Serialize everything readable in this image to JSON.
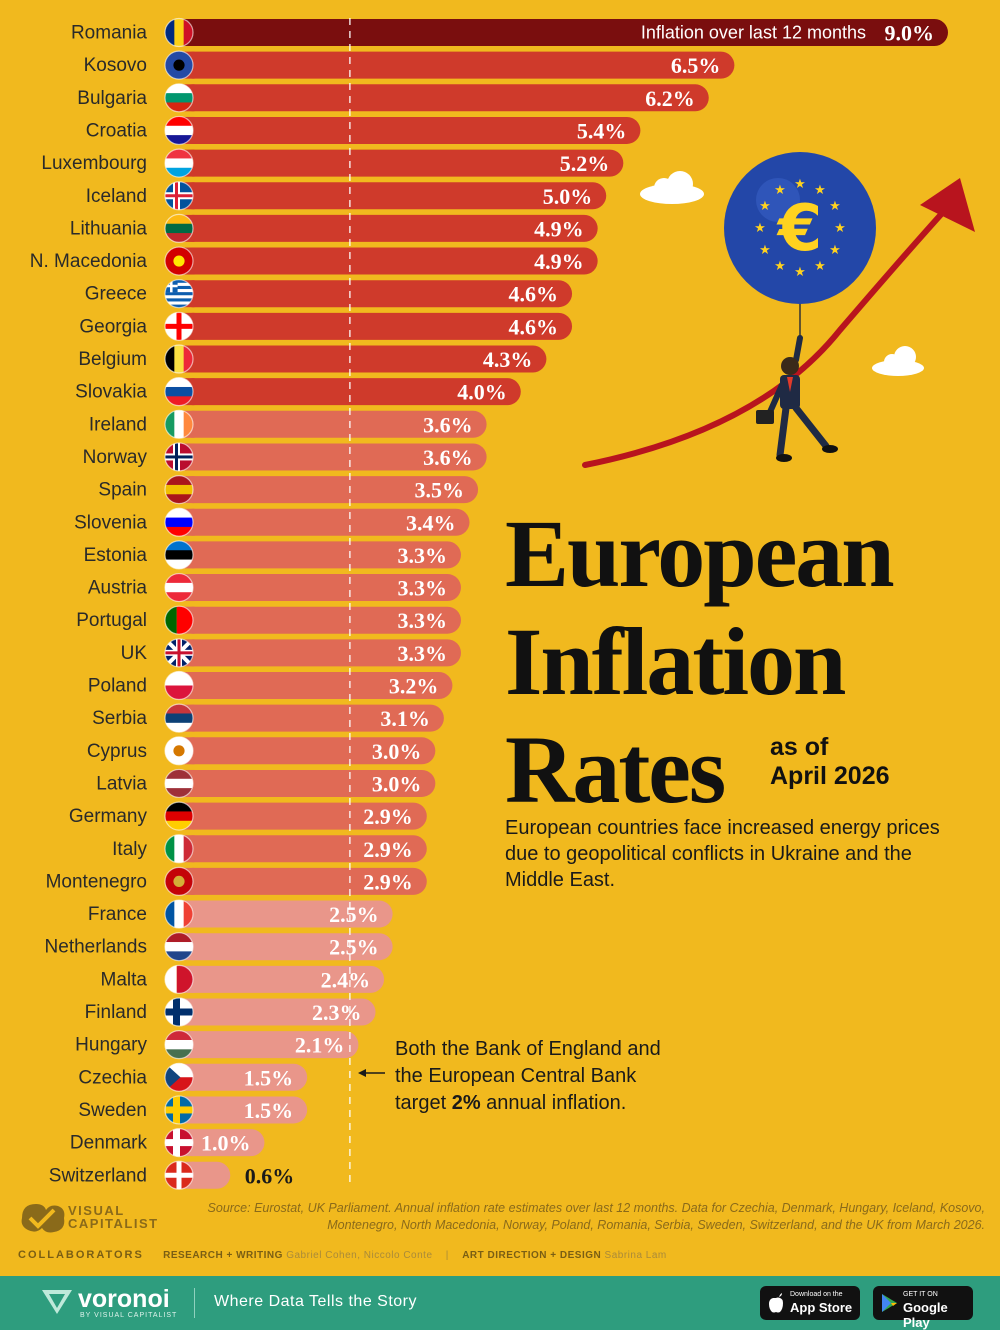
{
  "chart_data": {
    "type": "bar",
    "orientation": "horizontal",
    "categories": [
      "Romania",
      "Kosovo",
      "Bulgaria",
      "Croatia",
      "Luxembourg",
      "Iceland",
      "Lithuania",
      "N. Macedonia",
      "Greece",
      "Georgia",
      "Belgium",
      "Slovakia",
      "Ireland",
      "Norway",
      "Spain",
      "Slovenia",
      "Estonia",
      "Austria",
      "Portugal",
      "UK",
      "Poland",
      "Serbia",
      "Cyprus",
      "Latvia",
      "Germany",
      "Italy",
      "Montenegro",
      "France",
      "Netherlands",
      "Malta",
      "Finland",
      "Hungary",
      "Czechia",
      "Sweden",
      "Denmark",
      "Switzerland"
    ],
    "values": [
      9.0,
      6.5,
      6.2,
      5.4,
      5.2,
      5.0,
      4.9,
      4.9,
      4.6,
      4.6,
      4.3,
      4.0,
      3.6,
      3.6,
      3.5,
      3.4,
      3.3,
      3.3,
      3.3,
      3.3,
      3.2,
      3.1,
      3.0,
      3.0,
      2.9,
      2.9,
      2.9,
      2.5,
      2.5,
      2.4,
      2.3,
      2.1,
      1.5,
      1.5,
      1.0,
      0.6
    ],
    "value_labels": [
      "9.0%",
      "6.5%",
      "6.2%",
      "5.4%",
      "5.2%",
      "5.0%",
      "4.9%",
      "4.9%",
      "4.6%",
      "4.6%",
      "4.3%",
      "4.0%",
      "3.6%",
      "3.6%",
      "3.5%",
      "3.4%",
      "3.3%",
      "3.3%",
      "3.3%",
      "3.3%",
      "3.2%",
      "3.1%",
      "3.0%",
      "3.0%",
      "2.9%",
      "2.9%",
      "2.9%",
      "2.5%",
      "2.5%",
      "2.4%",
      "2.3%",
      "2.1%",
      "1.5%",
      "1.5%",
      "1.0%",
      "0.6%"
    ],
    "top_bar_label": "Inflation over last 12 months",
    "reference_line": 2.0,
    "xlim": [
      0,
      9.0
    ],
    "grid": false,
    "flags": {
      "Romania": [
        "v",
        "#002B7F",
        "#FCD116",
        "#CE1126"
      ],
      "Kosovo": [
        "s",
        "#244AA5"
      ],
      "Bulgaria": [
        "h",
        "#FFFFFF",
        "#00966E",
        "#D62612"
      ],
      "Croatia": [
        "h",
        "#FF0000",
        "#FFFFFF",
        "#171796"
      ],
      "Luxembourg": [
        "h",
        "#EF3340",
        "#FFFFFF",
        "#00A3E0"
      ],
      "Iceland": [
        "n",
        "#02529C",
        "#FFFFFF",
        "#DC1E35"
      ],
      "Lithuania": [
        "h",
        "#FDB913",
        "#006A44",
        "#C1272D"
      ],
      "N. Macedonia": [
        "s",
        "#D20000",
        "#FFE600"
      ],
      "Greece": [
        "g",
        "#0D5EAF",
        "#FFFFFF"
      ],
      "Georgia": [
        "c",
        "#FFFFFF",
        "#FF0000"
      ],
      "Belgium": [
        "v",
        "#000000",
        "#FAE042",
        "#ED2939"
      ],
      "Slovakia": [
        "h",
        "#FFFFFF",
        "#0B4EA2",
        "#EE1C25"
      ],
      "Ireland": [
        "v",
        "#169B62",
        "#FFFFFF",
        "#FF883E"
      ],
      "Norway": [
        "n",
        "#BA0C2F",
        "#FFFFFF",
        "#00205B"
      ],
      "Spain": [
        "h",
        "#AA151B",
        "#F1BF00",
        "#AA151B"
      ],
      "Slovenia": [
        "h",
        "#FFFFFF",
        "#0000FF",
        "#FF0000"
      ],
      "Estonia": [
        "h",
        "#0072CE",
        "#000000",
        "#FFFFFF"
      ],
      "Austria": [
        "h",
        "#ED2939",
        "#FFFFFF",
        "#ED2939"
      ],
      "Portugal": [
        "v2",
        "#006600",
        "#FF0000"
      ],
      "UK": [
        "u",
        "#012169",
        "#FFFFFF",
        "#C8102E"
      ],
      "Poland": [
        "h2",
        "#FFFFFF",
        "#DC143C"
      ],
      "Serbia": [
        "h",
        "#C6363C",
        "#0C4076",
        "#FFFFFF"
      ],
      "Cyprus": [
        "s",
        "#FFFFFF",
        "#D57800"
      ],
      "Latvia": [
        "h",
        "#9E3039",
        "#FFFFFF",
        "#9E3039"
      ],
      "Germany": [
        "h",
        "#000000",
        "#DD0000",
        "#FFCE00"
      ],
      "Italy": [
        "v",
        "#009246",
        "#FFFFFF",
        "#CE2B37"
      ],
      "Montenegro": [
        "s",
        "#C40308",
        "#D4AF37"
      ],
      "France": [
        "v",
        "#0055A4",
        "#FFFFFF",
        "#EF4135"
      ],
      "Netherlands": [
        "h",
        "#AE1C28",
        "#FFFFFF",
        "#21468B"
      ],
      "Malta": [
        "v2",
        "#FFFFFF",
        "#CF142B"
      ],
      "Finland": [
        "n",
        "#FFFFFF",
        "#002F6C",
        "#002F6C"
      ],
      "Hungary": [
        "h",
        "#CE2939",
        "#FFFFFF",
        "#477050"
      ],
      "Czechia": [
        "t",
        "#FFFFFF",
        "#D7141A",
        "#11457E"
      ],
      "Sweden": [
        "n",
        "#006AA7",
        "#FECC00",
        "#FECC00"
      ],
      "Denmark": [
        "n",
        "#C8102E",
        "#FFFFFF",
        "#FFFFFF"
      ],
      "Switzerland": [
        "c",
        "#DA291C",
        "#FFFFFF"
      ]
    }
  },
  "title": {
    "line1": "European",
    "line2": "Inflation",
    "line3": "Rates",
    "asof_line1": "as of",
    "asof_line2": "April 2026"
  },
  "subtitle": "European countries face increased energy prices due to geopolitical conflicts in Ukraine and the Middle East.",
  "annotation": {
    "line1": "Both the Bank of England and",
    "line2": "the European Central Bank",
    "prefix": "target ",
    "bold": "2%",
    "suffix": " annual inflation."
  },
  "source": "Source: Eurostat, UK Parliament. Annual inflation rate estimates over last 12 months. Data for Czechia, Denmark, Hungary, Iceland, Kosovo, Montenegro, North Macedonia, Norway, Poland, Romania, Serbia, Sweden, Switzerland, and the UK from March 2026.",
  "logo": {
    "line1": "VISUAL",
    "line2": "CAPITALIST"
  },
  "credits": {
    "heading": "COLLABORATORS",
    "role1": "RESEARCH + WRITING",
    "names1": "Gabriel Cohen, Niccolo Conte",
    "sep": "|",
    "role2": "ART DIRECTION + DESIGN",
    "names2": "Sabrina Lam"
  },
  "footer": {
    "brand": "voronoi",
    "brand_sub": "BY VISUAL CAPITALIST",
    "tagline": "Where Data Tells the Story",
    "appstore_small": "Download on the",
    "appstore_large": "App Store",
    "googleplay_small": "GET IT ON",
    "googleplay_large": "Google Play"
  },
  "colors": {
    "background": "#F1B91E",
    "bar_dark": "#7A0E0E",
    "bar_mid": "#CF3A2B",
    "bar_light": "#E06A55",
    "bar_lightest": "#E9968A",
    "footer": "#2E9D7E"
  }
}
